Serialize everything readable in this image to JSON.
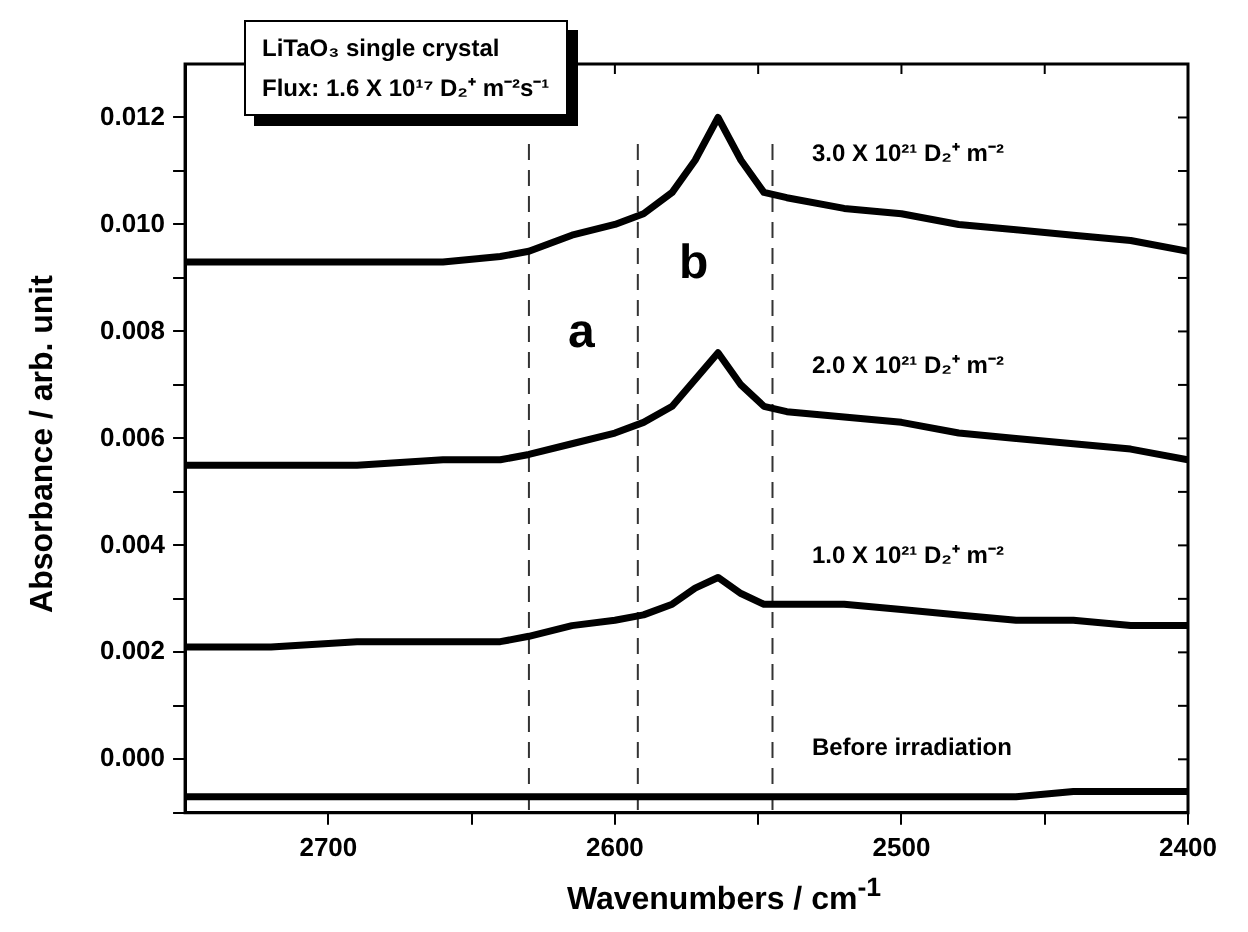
{
  "chart_data": {
    "type": "line",
    "xlabel": "Wavenumbers / cm$^{-1}$",
    "ylabel": "Absorbance / arb. unit",
    "x": [
      2750,
      2720,
      2690,
      2660,
      2640,
      2630,
      2615,
      2600,
      2590,
      2580,
      2572,
      2564,
      2556,
      2548,
      2540,
      2520,
      2500,
      2480,
      2460,
      2440,
      2420,
      2400
    ],
    "series": [
      {
        "name": "3.0 X 10²¹ D₂⁺ m⁻²",
        "color": "#000000",
        "values": [
          0.0093,
          0.0093,
          0.0093,
          0.0093,
          0.0094,
          0.0095,
          0.0098,
          0.01,
          0.0102,
          0.0106,
          0.0112,
          0.012,
          0.0112,
          0.0106,
          0.0105,
          0.0103,
          0.0102,
          0.01,
          0.0099,
          0.0098,
          0.0097,
          0.0095
        ]
      },
      {
        "name": "2.0 X 10²¹ D₂⁺ m⁻²",
        "color": "#000000",
        "values": [
          0.0055,
          0.0055,
          0.0055,
          0.0056,
          0.0056,
          0.0057,
          0.0059,
          0.0061,
          0.0063,
          0.0066,
          0.0071,
          0.0076,
          0.007,
          0.0066,
          0.0065,
          0.0064,
          0.0063,
          0.0061,
          0.006,
          0.0059,
          0.0058,
          0.0056
        ]
      },
      {
        "name": "1.0 X 10²¹ D₂⁺ m⁻²",
        "color": "#000000",
        "values": [
          0.0021,
          0.0021,
          0.0022,
          0.0022,
          0.0022,
          0.0023,
          0.0025,
          0.0026,
          0.0027,
          0.0029,
          0.0032,
          0.0034,
          0.0031,
          0.0029,
          0.0029,
          0.0029,
          0.0028,
          0.0027,
          0.0026,
          0.0026,
          0.0025,
          0.0025
        ]
      },
      {
        "name": "Before irradiation",
        "color": "#000000",
        "values": [
          -0.0007,
          -0.0007,
          -0.0007,
          -0.0007,
          -0.0007,
          -0.0007,
          -0.0007,
          -0.0007,
          -0.0007,
          -0.0007,
          -0.0007,
          -0.0007,
          -0.0007,
          -0.0007,
          -0.0007,
          -0.0007,
          -0.0007,
          -0.0007,
          -0.0007,
          -0.0006,
          -0.0006,
          -0.0006
        ]
      }
    ],
    "xlim": [
      2750,
      2400
    ],
    "xticks": [
      2700,
      {
        "value": 2650,
        "label": null
      },
      2600,
      {
        "value": 2550,
        "label": null
      },
      2500,
      {
        "value": 2450,
        "label": null
      },
      2400
    ],
    "ylim": [
      -0.001,
      0.013
    ],
    "yticks": [
      {
        "value": -0.001,
        "label": null
      },
      {
        "value": 0,
        "label": "0.000"
      },
      {
        "value": 0.001,
        "label": null
      },
      {
        "value": 0.002,
        "label": "0.002"
      },
      {
        "value": 0.003,
        "label": null
      },
      {
        "value": 0.004,
        "label": "0.004"
      },
      {
        "value": 0.005,
        "label": null
      },
      {
        "value": 0.006,
        "label": "0.006"
      },
      {
        "value": 0.007,
        "label": null
      },
      {
        "value": 0.008,
        "label": "0.008"
      },
      {
        "value": 0.009,
        "label": null
      },
      {
        "value": 0.01,
        "label": "0.010"
      },
      {
        "value": 0.011,
        "label": null
      },
      {
        "value": 0.012,
        "label": "0.012"
      }
    ],
    "ref_lines": [
      {
        "axis": "x",
        "value": 2630,
        "color": "#333333",
        "line_style": "dashed"
      },
      {
        "axis": "x",
        "value": 2592,
        "color": "#333333",
        "line_style": "dashed"
      },
      {
        "axis": "x",
        "value": 2545,
        "color": "#333333",
        "line_style": "dashed"
      }
    ],
    "annotations": [
      "LiTaO₃ single crystal",
      "Flux: 1.6 X 10¹⁷ D₂⁺ m⁻²s⁻¹",
      "a",
      "b"
    ],
    "grid": false,
    "legend": false,
    "marker": "none",
    "line_style": "solid"
  }
}
